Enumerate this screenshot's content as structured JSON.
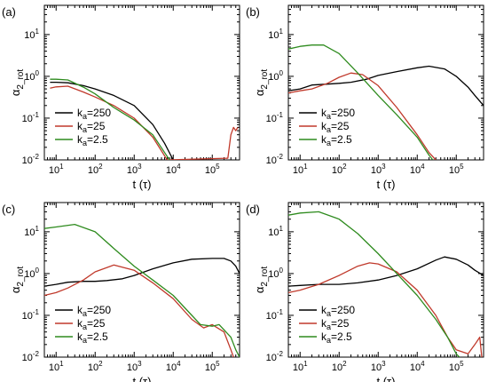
{
  "chart_data": [
    {
      "type": "line",
      "panel_label": "(a)",
      "xlabel": "t (τ)",
      "ylabel": "α2_rot",
      "xscale": "log",
      "yscale": "log",
      "xlim": [
        5,
        500000
      ],
      "ylim": [
        0.01,
        50
      ],
      "legend_position": "bottom-left",
      "series": [
        {
          "name": "ka=250",
          "color": "#000000",
          "points": [
            [
              7,
              0.72
            ],
            [
              10,
              0.72
            ],
            [
              20,
              0.7
            ],
            [
              50,
              0.6
            ],
            [
              100,
              0.5
            ],
            [
              300,
              0.35
            ],
            [
              1000,
              0.2
            ],
            [
              3000,
              0.07
            ],
            [
              6000,
              0.025
            ],
            [
              10000,
              0.01
            ]
          ]
        },
        {
          "name": "ka=25",
          "color": "#c0392b",
          "points": [
            [
              7,
              0.52
            ],
            [
              10,
              0.56
            ],
            [
              20,
              0.58
            ],
            [
              50,
              0.42
            ],
            [
              100,
              0.32
            ],
            [
              300,
              0.2
            ],
            [
              1000,
              0.1
            ],
            [
              3000,
              0.035
            ],
            [
              7000,
              0.01
            ],
            [
              250000,
              0.011
            ],
            [
              300000,
              0.04
            ],
            [
              350000,
              0.06
            ],
            [
              400000,
              0.05
            ],
            [
              450000,
              0.06
            ]
          ]
        },
        {
          "name": "ka=2.5",
          "color": "#2e8b1e",
          "points": [
            [
              7,
              0.85
            ],
            [
              10,
              0.85
            ],
            [
              20,
              0.82
            ],
            [
              50,
              0.55
            ],
            [
              100,
              0.38
            ],
            [
              300,
              0.18
            ],
            [
              1000,
              0.09
            ],
            [
              3000,
              0.04
            ],
            [
              6000,
              0.015
            ],
            [
              8000,
              0.01
            ]
          ]
        }
      ]
    },
    {
      "type": "line",
      "panel_label": "(b)",
      "xlabel": "t (τ)",
      "ylabel": "α2_rot",
      "xscale": "log",
      "yscale": "log",
      "xlim": [
        5,
        500000
      ],
      "ylim": [
        0.01,
        50
      ],
      "legend_position": "bottom-right",
      "series": [
        {
          "name": "ka=250",
          "color": "#000000",
          "points": [
            [
              5,
              0.45
            ],
            [
              10,
              0.5
            ],
            [
              20,
              0.62
            ],
            [
              50,
              0.65
            ],
            [
              100,
              0.68
            ],
            [
              200,
              0.72
            ],
            [
              500,
              0.85
            ],
            [
              1000,
              1.05
            ],
            [
              3000,
              1.3
            ],
            [
              10000,
              1.6
            ],
            [
              20000,
              1.75
            ],
            [
              50000,
              1.5
            ],
            [
              100000,
              1.0
            ],
            [
              200000,
              0.55
            ],
            [
              300000,
              0.35
            ],
            [
              500000,
              0.2
            ]
          ]
        },
        {
          "name": "ka=25",
          "color": "#c0392b",
          "points": [
            [
              5,
              0.4
            ],
            [
              10,
              0.45
            ],
            [
              20,
              0.5
            ],
            [
              50,
              0.68
            ],
            [
              100,
              0.95
            ],
            [
              200,
              1.2
            ],
            [
              400,
              1.1
            ],
            [
              1000,
              0.6
            ],
            [
              3000,
              0.18
            ],
            [
              10000,
              0.04
            ],
            [
              20000,
              0.015
            ],
            [
              30000,
              0.01
            ]
          ]
        },
        {
          "name": "ka=2.5",
          "color": "#2e8b1e",
          "points": [
            [
              5,
              4.5
            ],
            [
              10,
              5.2
            ],
            [
              20,
              5.6
            ],
            [
              40,
              5.6
            ],
            [
              100,
              3.5
            ],
            [
              300,
              1.2
            ],
            [
              1000,
              0.35
            ],
            [
              3000,
              0.12
            ],
            [
              10000,
              0.035
            ],
            [
              20000,
              0.013
            ],
            [
              25000,
              0.01
            ]
          ]
        }
      ]
    },
    {
      "type": "line",
      "panel_label": "(c)",
      "xlabel": "t (τ)",
      "ylabel": "α2_rot",
      "xscale": "log",
      "yscale": "log",
      "xlim": [
        5,
        500000
      ],
      "ylim": [
        0.01,
        50
      ],
      "legend_position": "bottom-left",
      "series": [
        {
          "name": "ka=250",
          "color": "#000000",
          "points": [
            [
              5,
              0.5
            ],
            [
              10,
              0.55
            ],
            [
              20,
              0.62
            ],
            [
              50,
              0.65
            ],
            [
              100,
              0.65
            ],
            [
              200,
              0.68
            ],
            [
              500,
              0.75
            ],
            [
              1000,
              0.9
            ],
            [
              3000,
              1.3
            ],
            [
              10000,
              1.8
            ],
            [
              30000,
              2.2
            ],
            [
              100000,
              2.3
            ],
            [
              200000,
              2.3
            ],
            [
              300000,
              2.0
            ],
            [
              400000,
              1.5
            ],
            [
              500000,
              1.0
            ]
          ]
        },
        {
          "name": "ka=25",
          "color": "#c0392b",
          "points": [
            [
              5,
              0.3
            ],
            [
              10,
              0.35
            ],
            [
              20,
              0.45
            ],
            [
              50,
              0.7
            ],
            [
              100,
              1.1
            ],
            [
              300,
              1.6
            ],
            [
              1000,
              1.2
            ],
            [
              3000,
              0.6
            ],
            [
              10000,
              0.25
            ],
            [
              30000,
              0.08
            ],
            [
              60000,
              0.05
            ],
            [
              100000,
              0.06
            ],
            [
              200000,
              0.04
            ],
            [
              300000,
              0.015
            ],
            [
              350000,
              0.01
            ]
          ]
        },
        {
          "name": "ka=2.5",
          "color": "#2e8b1e",
          "points": [
            [
              5,
              12
            ],
            [
              10,
              13
            ],
            [
              30,
              15
            ],
            [
              100,
              10
            ],
            [
              300,
              4.0
            ],
            [
              1000,
              1.5
            ],
            [
              3000,
              0.7
            ],
            [
              10000,
              0.3
            ],
            [
              30000,
              0.1
            ],
            [
              50000,
              0.06
            ],
            [
              100000,
              0.055
            ],
            [
              150000,
              0.06
            ],
            [
              300000,
              0.03
            ],
            [
              400000,
              0.015
            ],
            [
              500000,
              0.01
            ]
          ]
        }
      ]
    },
    {
      "type": "line",
      "panel_label": "(d)",
      "xlabel": "t (τ)",
      "ylabel": "α2_rot",
      "xscale": "log",
      "yscale": "log",
      "xlim": [
        5,
        500000
      ],
      "ylim": [
        0.01,
        50
      ],
      "legend_position": "bottom-left",
      "series": [
        {
          "name": "ka=250",
          "color": "#000000",
          "points": [
            [
              5,
              0.5
            ],
            [
              10,
              0.52
            ],
            [
              30,
              0.55
            ],
            [
              100,
              0.55
            ],
            [
              300,
              0.6
            ],
            [
              1000,
              0.7
            ],
            [
              3000,
              0.9
            ],
            [
              10000,
              1.3
            ],
            [
              30000,
              2.1
            ],
            [
              50000,
              2.5
            ],
            [
              100000,
              2.2
            ],
            [
              200000,
              1.6
            ],
            [
              300000,
              1.2
            ],
            [
              500000,
              0.9
            ]
          ]
        },
        {
          "name": "ka=25",
          "color": "#c0392b",
          "points": [
            [
              5,
              0.35
            ],
            [
              10,
              0.4
            ],
            [
              30,
              0.55
            ],
            [
              100,
              0.9
            ],
            [
              300,
              1.5
            ],
            [
              600,
              1.8
            ],
            [
              1000,
              1.7
            ],
            [
              3000,
              1.1
            ],
            [
              10000,
              0.4
            ],
            [
              30000,
              0.1
            ],
            [
              60000,
              0.03
            ],
            [
              100000,
              0.015
            ],
            [
              200000,
              0.012
            ],
            [
              300000,
              0.02
            ],
            [
              400000,
              0.03
            ],
            [
              450000,
              0.01
            ]
          ]
        },
        {
          "name": "ka=2.5",
          "color": "#2e8b1e",
          "points": [
            [
              5,
              25
            ],
            [
              10,
              28
            ],
            [
              30,
              30
            ],
            [
              100,
              20
            ],
            [
              300,
              9.0
            ],
            [
              1000,
              3.0
            ],
            [
              3000,
              1.0
            ],
            [
              10000,
              0.3
            ],
            [
              30000,
              0.08
            ],
            [
              60000,
              0.03
            ],
            [
              100000,
              0.012
            ],
            [
              120000,
              0.01
            ]
          ]
        }
      ]
    }
  ],
  "panels_text": [
    {
      "label": "(a)",
      "xlabel": "t (τ)",
      "ylabel_main": "α",
      "ylabel_sub": "2_rot",
      "legend": [
        {
          "k": "k",
          "sub": "a",
          "val": "=250"
        },
        {
          "k": "k",
          "sub": "a",
          "val": "=25"
        },
        {
          "k": "k",
          "sub": "a",
          "val": "=2.5"
        }
      ]
    },
    {
      "label": "(b)",
      "xlabel": "t (τ)",
      "ylabel_main": "α",
      "ylabel_sub": "2_rot",
      "legend": [
        {
          "k": "k",
          "sub": "a",
          "val": "=250"
        },
        {
          "k": "k",
          "sub": "a",
          "val": "=25"
        },
        {
          "k": "k",
          "sub": "a",
          "val": "=2.5"
        }
      ]
    },
    {
      "label": "(c)",
      "xlabel": "t (τ)",
      "ylabel_main": "α",
      "ylabel_sub": "2_rot",
      "legend": [
        {
          "k": "k",
          "sub": "a",
          "val": "=250"
        },
        {
          "k": "k",
          "sub": "a",
          "val": "=25"
        },
        {
          "k": "k",
          "sub": "a",
          "val": "=2.5"
        }
      ]
    },
    {
      "label": "(d)",
      "xlabel": "t (τ)",
      "ylabel_main": "α",
      "ylabel_sub": "2_rot",
      "legend": [
        {
          "k": "k",
          "sub": "a",
          "val": "=250"
        },
        {
          "k": "k",
          "sub": "a",
          "val": "=25"
        },
        {
          "k": "k",
          "sub": "a",
          "val": "=2.5"
        }
      ]
    }
  ],
  "x_ticks": [
    {
      "base": "10",
      "exp": "1",
      "value": 10
    },
    {
      "base": "10",
      "exp": "2",
      "value": 100
    },
    {
      "base": "10",
      "exp": "3",
      "value": 1000
    },
    {
      "base": "10",
      "exp": "4",
      "value": 10000
    },
    {
      "base": "10",
      "exp": "5",
      "value": 100000
    }
  ],
  "y_ticks": [
    {
      "base": "10",
      "exp": "-2",
      "value": 0.01
    },
    {
      "base": "10",
      "exp": "-1",
      "value": 0.1
    },
    {
      "base": "10",
      "exp": "0",
      "value": 1
    },
    {
      "base": "10",
      "exp": "1",
      "value": 10
    }
  ]
}
